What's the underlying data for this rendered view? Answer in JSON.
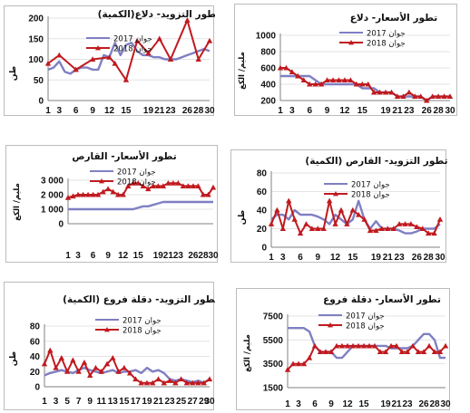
{
  "colors": {
    "series_2017": "#7f7fc3",
    "series_2018": "#c01a1f",
    "marker_2018": "#c01a1f",
    "axis": "#808080"
  },
  "chart_data": [
    {
      "id": "supply-dalaa",
      "type": "line",
      "title": "تطور التزويد- دلاع(الكمية)",
      "ylabel": "طن",
      "ylim": [
        0,
        200
      ],
      "yticks": [
        0,
        50,
        100,
        150,
        200
      ],
      "xticks": [
        1,
        3,
        6,
        9,
        12,
        15,
        19,
        21,
        23,
        26,
        28,
        30
      ],
      "legend": [
        "جوان 2017",
        "جوان 2018"
      ],
      "series": [
        {
          "name": "جوان 2017",
          "x": [
            1,
            2,
            3,
            4,
            5,
            6,
            7,
            8,
            9,
            10,
            11,
            12,
            13,
            14,
            15,
            16,
            17,
            18,
            19,
            20,
            21,
            22,
            23,
            24,
            25,
            26,
            27,
            28,
            29,
            30
          ],
          "values": [
            75,
            80,
            95,
            70,
            65,
            75,
            80,
            80,
            75,
            75,
            110,
            105,
            140,
            110,
            135,
            140,
            120,
            110,
            110,
            105,
            105,
            100,
            100,
            100,
            105,
            110,
            115,
            120,
            125,
            120
          ]
        },
        {
          "name": "جوان 2018",
          "x": [
            1,
            3,
            6,
            9,
            12,
            13,
            15,
            17,
            19,
            21,
            23,
            26,
            28,
            30
          ],
          "values": [
            90,
            110,
            75,
            100,
            105,
            90,
            50,
            145,
            115,
            150,
            100,
            195,
            100,
            145
          ]
        }
      ]
    },
    {
      "id": "price-dalaa",
      "type": "line",
      "title": "تطور الأسعار- دلاع",
      "ylabel": "مليم/ الكغ",
      "ylim": [
        200,
        1000
      ],
      "yticks": [
        200,
        400,
        600,
        800,
        1000
      ],
      "xticks": [
        1,
        3,
        6,
        9,
        12,
        15,
        19,
        21,
        23,
        26,
        28,
        30
      ],
      "legend": [
        "جوان 2017",
        "جوان 2018"
      ],
      "series": [
        {
          "name": "جوان 2017",
          "x": [
            1,
            3,
            4,
            5,
            6,
            7,
            8,
            9,
            10,
            11,
            12,
            13,
            14,
            15,
            16,
            17,
            18,
            19,
            20,
            21,
            22,
            23,
            24,
            25,
            26,
            27,
            28,
            29,
            30
          ],
          "values": [
            500,
            500,
            500,
            500,
            500,
            450,
            400,
            400,
            400,
            400,
            400,
            400,
            400,
            350,
            350,
            350,
            300,
            300,
            300,
            250,
            250,
            250,
            250,
            250,
            200,
            250,
            250,
            250,
            250
          ]
        },
        {
          "name": "جوان 2018",
          "x": [
            1,
            2,
            3,
            4,
            5,
            6,
            7,
            8,
            9,
            10,
            11,
            12,
            13,
            14,
            15,
            16,
            17,
            18,
            19,
            20,
            21,
            22,
            23,
            24,
            25,
            26,
            27,
            28,
            29,
            30
          ],
          "values": [
            600,
            600,
            550,
            500,
            450,
            400,
            400,
            400,
            450,
            450,
            450,
            450,
            450,
            400,
            400,
            400,
            300,
            300,
            300,
            300,
            250,
            250,
            300,
            250,
            250,
            200,
            250,
            250,
            250,
            250
          ]
        }
      ]
    },
    {
      "id": "price-qaras",
      "type": "line",
      "title": "تطور الأسعار- القارص",
      "ylabel": "مليم/ الكغ",
      "ylim": [
        0,
        3000
      ],
      "yticks": [
        0,
        1000,
        2000,
        3000
      ],
      "ytick_labels": [
        "0",
        "1 000",
        "2 000",
        "3 000"
      ],
      "xticks": [
        1,
        3,
        6,
        9,
        12,
        15,
        19,
        21,
        23,
        26,
        28,
        30
      ],
      "legend": [
        "جوان 2017",
        "جوان 2018"
      ],
      "series": [
        {
          "name": "جوان 2017",
          "x": [
            1,
            2,
            3,
            4,
            5,
            6,
            7,
            8,
            9,
            10,
            11,
            12,
            13,
            14,
            15,
            16,
            17,
            18,
            19,
            20,
            21,
            22,
            23,
            24,
            25,
            26,
            27,
            28,
            29,
            30
          ],
          "values": [
            1000,
            1000,
            1000,
            1000,
            1000,
            1000,
            1000,
            1000,
            1000,
            1000,
            1000,
            1000,
            1000,
            1000,
            1100,
            1200,
            1200,
            1300,
            1400,
            1500,
            1500,
            1500,
            1500,
            1500,
            1500,
            1500,
            1500,
            1500,
            1500,
            1500
          ]
        },
        {
          "name": "جوان 2018",
          "x": [
            1,
            2,
            3,
            4,
            5,
            6,
            7,
            8,
            9,
            10,
            11,
            12,
            13,
            14,
            15,
            16,
            17,
            18,
            19,
            20,
            21,
            22,
            23,
            24,
            25,
            26,
            27,
            28,
            29,
            30
          ],
          "values": [
            1800,
            1900,
            2000,
            2000,
            2000,
            2000,
            2000,
            2200,
            2400,
            2200,
            2000,
            2000,
            2600,
            2800,
            2800,
            2600,
            2400,
            2600,
            2600,
            2600,
            2800,
            2800,
            2800,
            2600,
            2600,
            2600,
            2600,
            2000,
            2000,
            2500
          ]
        }
      ]
    },
    {
      "id": "supply-qaras",
      "type": "line",
      "title": "تطور التزويد- القارص (الكمية)",
      "ylabel": "طن",
      "ylim": [
        0,
        80
      ],
      "yticks": [
        0,
        20,
        40,
        60,
        80
      ],
      "xticks": [
        1,
        3,
        6,
        9,
        12,
        15,
        19,
        21,
        23,
        26,
        28,
        30
      ],
      "legend": [
        "جوان 2017",
        "جوان 2018"
      ],
      "series": [
        {
          "name": "جوان 2017",
          "x": [
            1,
            2,
            3,
            4,
            5,
            6,
            7,
            8,
            9,
            10,
            11,
            12,
            13,
            14,
            15,
            16,
            17,
            18,
            19,
            20,
            21,
            22,
            23,
            24,
            25,
            26,
            27,
            28,
            29,
            30
          ],
          "values": [
            30,
            35,
            35,
            30,
            40,
            35,
            35,
            35,
            33,
            30,
            25,
            35,
            30,
            25,
            30,
            50,
            30,
            20,
            28,
            20,
            20,
            20,
            18,
            15,
            15,
            17,
            20,
            20,
            20,
            25
          ]
        },
        {
          "name": "جوان 2018",
          "x": [
            1,
            2,
            3,
            4,
            5,
            6,
            7,
            8,
            9,
            10,
            11,
            12,
            13,
            14,
            15,
            16,
            17,
            18,
            19,
            20,
            21,
            22,
            23,
            24,
            25,
            26,
            27,
            28,
            29,
            30
          ],
          "values": [
            25,
            40,
            20,
            50,
            30,
            15,
            25,
            20,
            20,
            20,
            50,
            25,
            40,
            25,
            40,
            35,
            30,
            18,
            18,
            20,
            20,
            20,
            25,
            25,
            25,
            22,
            20,
            15,
            15,
            30
          ]
        }
      ]
    },
    {
      "id": "supply-deglet",
      "type": "line",
      "title": "تطور التزويد- دقلة فروع (الكمية)",
      "ylabel": "طن",
      "ylim": [
        0,
        80
      ],
      "yticks": [
        0,
        20,
        40,
        60,
        80
      ],
      "xticks": [
        1,
        3,
        5,
        7,
        9,
        11,
        13,
        15,
        17,
        19,
        21,
        23,
        25,
        27,
        29
      ],
      "extra_xticks": [
        30
      ],
      "legend": [
        "جوان 2017",
        "جوان 2018"
      ],
      "series": [
        {
          "name": "جوان 2017",
          "x": [
            1,
            2,
            3,
            4,
            5,
            6,
            7,
            8,
            9,
            10,
            11,
            12,
            13,
            14,
            15,
            16,
            17,
            18,
            19,
            20,
            21,
            22,
            23,
            24,
            25,
            26,
            27,
            28,
            29,
            30
          ],
          "values": [
            15,
            18,
            20,
            22,
            20,
            18,
            22,
            25,
            22,
            20,
            18,
            20,
            22,
            18,
            20,
            20,
            22,
            18,
            25,
            20,
            22,
            18,
            10,
            8,
            10,
            8,
            6,
            8,
            5,
            10
          ]
        },
        {
          "name": "جوان 2018",
          "x": [
            1,
            2,
            3,
            4,
            5,
            6,
            7,
            8,
            9,
            10,
            11,
            12,
            13,
            14,
            15,
            16,
            17,
            18,
            19,
            20,
            21,
            22,
            23,
            24,
            25,
            26,
            27,
            28,
            29,
            30
          ],
          "values": [
            30,
            48,
            25,
            38,
            20,
            35,
            20,
            32,
            15,
            25,
            20,
            30,
            38,
            20,
            25,
            18,
            10,
            5,
            5,
            5,
            10,
            5,
            8,
            5,
            10,
            5,
            5,
            5,
            5,
            10
          ]
        }
      ]
    },
    {
      "id": "price-deglet",
      "type": "line",
      "title": "تطور الأسعار- دقلة فروع",
      "ylabel": "مليم/ الكغ",
      "ylim": [
        1500,
        7500
      ],
      "yticks": [
        1500,
        3500,
        5500,
        7500
      ],
      "xticks": [
        1,
        3,
        6,
        9,
        12,
        15,
        19,
        21,
        23,
        26,
        28,
        30
      ],
      "legend": [
        "جوان 2017",
        "جوان 2018"
      ],
      "series": [
        {
          "name": "جوان 2017",
          "x": [
            1,
            2,
            3,
            4,
            5,
            6,
            7,
            8,
            9,
            10,
            11,
            12,
            13,
            14,
            15,
            16,
            17,
            18,
            19,
            20,
            21,
            22,
            23,
            24,
            25,
            26,
            27,
            28,
            29,
            30
          ],
          "values": [
            6500,
            6500,
            6500,
            6500,
            6200,
            5000,
            4500,
            4500,
            4500,
            4000,
            4000,
            4500,
            5000,
            5000,
            5000,
            5000,
            5000,
            5000,
            5000,
            4800,
            4800,
            4800,
            4800,
            5000,
            5500,
            6000,
            6000,
            5500,
            4000,
            4000
          ]
        },
        {
          "name": "جوان 2018",
          "x": [
            1,
            2,
            3,
            4,
            5,
            6,
            7,
            8,
            9,
            10,
            11,
            12,
            13,
            14,
            15,
            16,
            17,
            18,
            19,
            20,
            21,
            22,
            23,
            24,
            25,
            26,
            27,
            28,
            29,
            30
          ],
          "values": [
            3000,
            3500,
            3500,
            3500,
            4000,
            5000,
            4500,
            4500,
            4500,
            5000,
            5000,
            5000,
            5000,
            5000,
            5000,
            5000,
            5000,
            4500,
            4500,
            5000,
            5000,
            4500,
            4500,
            5000,
            4500,
            4500,
            5000,
            4500,
            4500,
            5000
          ]
        }
      ]
    }
  ]
}
